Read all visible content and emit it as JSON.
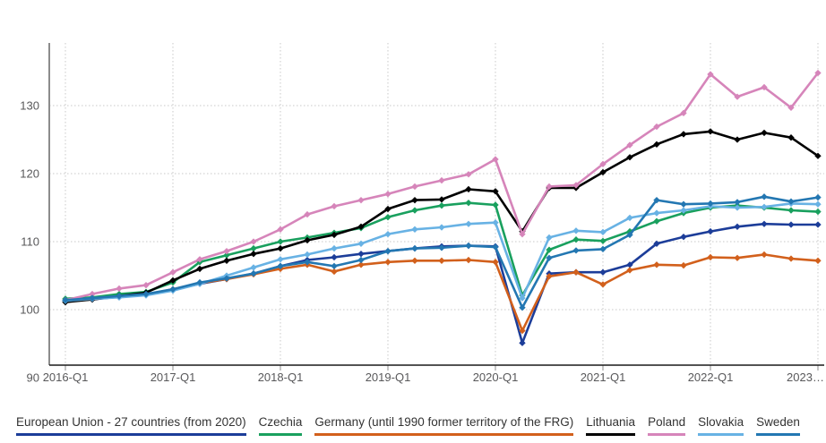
{
  "chart_data": {
    "type": "line",
    "title": "",
    "xlabel": "",
    "ylabel": "",
    "grid": "dotted",
    "legend_position": "bottom",
    "y_ticks": [
      130,
      120,
      110,
      100,
      90
    ],
    "ylim": [
      90,
      139
    ],
    "x_year_tick_labels": [
      "2016-Q1",
      "2017-Q1",
      "2018-Q1",
      "2019-Q1",
      "2020-Q1",
      "2021-Q1",
      "2022-Q1",
      "2023…"
    ],
    "categories": [
      "2016-Q1",
      "2016-Q2",
      "2016-Q3",
      "2016-Q4",
      "2017-Q1",
      "2017-Q2",
      "2017-Q3",
      "2017-Q4",
      "2018-Q1",
      "2018-Q2",
      "2018-Q3",
      "2018-Q4",
      "2019-Q1",
      "2019-Q2",
      "2019-Q3",
      "2019-Q4",
      "2020-Q1",
      "2020-Q2",
      "2020-Q3",
      "2020-Q4",
      "2021-Q1",
      "2021-Q2",
      "2021-Q3",
      "2021-Q4",
      "2022-Q1",
      "2022-Q2",
      "2022-Q3",
      "2022-Q4",
      "2023-Q1"
    ],
    "series": [
      {
        "key": "eu27",
        "name": "European Union - 27 countries (from 2020)",
        "color": "#1c3d99",
        "values": [
          101.3,
          101.5,
          101.9,
          102.2,
          102.9,
          103.8,
          104.5,
          105.3,
          106.4,
          107.3,
          107.7,
          108.2,
          108.6,
          109.0,
          109.3,
          109.4,
          109.3,
          95.1,
          105.3,
          105.5,
          105.5,
          106.6,
          109.7,
          110.7,
          111.5,
          112.2,
          112.6,
          112.5,
          112.5
        ]
      },
      {
        "key": "czechia",
        "name": "Czechia",
        "color": "#19a05e",
        "values": [
          101.6,
          101.8,
          102.3,
          102.6,
          104.0,
          107.0,
          108.0,
          109.0,
          110.0,
          110.6,
          111.3,
          112.0,
          113.6,
          114.6,
          115.3,
          115.7,
          115.4,
          102.1,
          108.8,
          110.3,
          110.1,
          111.5,
          113.0,
          114.2,
          115.0,
          115.3,
          115.0,
          114.6,
          114.4
        ]
      },
      {
        "key": "germany",
        "name": "Germany (until 1990 former territory of the FRG)",
        "color": "#d2601c",
        "values": [
          101.4,
          101.6,
          101.9,
          102.2,
          103.0,
          103.9,
          104.5,
          105.2,
          106.0,
          106.6,
          105.6,
          106.6,
          107.0,
          107.2,
          107.2,
          107.3,
          107.0,
          96.9,
          104.9,
          105.5,
          103.7,
          105.8,
          106.6,
          106.5,
          107.7,
          107.6,
          108.1,
          107.5,
          107.2
        ]
      },
      {
        "key": "lithuania",
        "name": "Lithuania",
        "color": "#000000",
        "values": [
          101.1,
          101.5,
          102.0,
          102.5,
          104.3,
          106.0,
          107.2,
          108.2,
          109.0,
          110.2,
          111.0,
          112.2,
          114.8,
          116.1,
          116.2,
          117.7,
          117.4,
          111.5,
          117.9,
          117.9,
          120.2,
          122.4,
          124.3,
          125.8,
          126.2,
          125.0,
          126.0,
          125.3,
          122.6
        ]
      },
      {
        "key": "poland",
        "name": "Poland",
        "color": "#d685ba",
        "values": [
          101.4,
          102.3,
          103.1,
          103.6,
          105.5,
          107.4,
          108.6,
          110.0,
          111.8,
          114.0,
          115.2,
          116.1,
          117.0,
          118.1,
          119.0,
          119.9,
          122.1,
          111.1,
          118.1,
          118.3,
          121.4,
          124.2,
          126.9,
          128.9,
          134.6,
          131.3,
          132.7,
          129.7,
          134.8
        ]
      },
      {
        "key": "slovakia",
        "name": "Slovakia",
        "color": "#68b2e4",
        "values": [
          101.3,
          101.6,
          101.8,
          102.1,
          102.8,
          103.8,
          105.0,
          106.2,
          107.4,
          108.1,
          109.0,
          109.7,
          111.1,
          111.8,
          112.1,
          112.6,
          112.8,
          101.7,
          110.6,
          111.6,
          111.4,
          113.5,
          114.2,
          114.6,
          115.2,
          115.0,
          115.1,
          115.6,
          115.5
        ]
      },
      {
        "key": "sweden",
        "name": "Sweden",
        "color": "#2377b2",
        "values": [
          101.4,
          101.7,
          102.0,
          102.3,
          103.0,
          104.0,
          104.6,
          105.3,
          106.4,
          107.0,
          106.4,
          107.3,
          108.6,
          109.0,
          109.1,
          109.4,
          109.2,
          100.3,
          107.6,
          108.7,
          108.9,
          111.0,
          116.1,
          115.5,
          115.6,
          115.8,
          116.6,
          115.9,
          116.5
        ]
      }
    ],
    "style": {
      "axis_y_color": "#8c8c8c",
      "axis_x_color": "#1a1a1a",
      "gridline_color": "#c8c8c8",
      "label_color": "#58585a",
      "background": "#ffffff"
    }
  }
}
